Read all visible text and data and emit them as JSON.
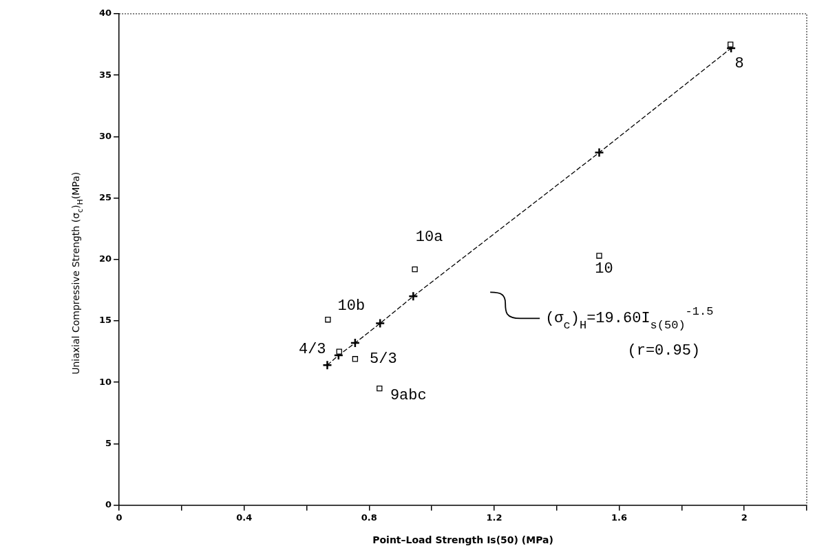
{
  "chart_data": {
    "type": "scatter",
    "xlabel": "Point–Load Strength Is(50) (MPa)",
    "ylabel": "Uniaxial Compressive Strength (σ$_{c}$)$_{H}$(MPa)",
    "xlim": [
      0,
      2.2
    ],
    "ylim": [
      0,
      40
    ],
    "xticks": [
      0,
      {
        "value": 0.2,
        "label": null
      },
      0.4,
      {
        "value": 0.6,
        "label": null
      },
      0.8,
      {
        "value": 1.0,
        "label": null
      },
      1.2,
      {
        "value": 1.4,
        "label": null
      },
      1.6,
      {
        "value": 1.8,
        "label": null
      },
      2,
      {
        "value": 2.2,
        "label": null
      }
    ],
    "yticks": [
      0,
      5,
      10,
      15,
      20,
      25,
      30,
      35,
      40
    ],
    "grid": false,
    "legend": false,
    "series": [
      {
        "marker": "square",
        "color": "#000000",
        "x": [
          0.668,
          0.704,
          0.755,
          0.833,
          0.946,
          1.536,
          1.956
        ],
        "values": [
          15.1,
          12.5,
          11.9,
          9.5,
          19.2,
          20.3,
          37.5
        ]
      },
      {
        "type": "line",
        "marker": "cross",
        "line_style": "dashed",
        "color": "#000000",
        "x": [
          0.666,
          0.702,
          0.755,
          0.835,
          0.941,
          1.536,
          1.958
        ],
        "values": [
          11.4,
          12.2,
          13.2,
          14.8,
          17.0,
          28.7,
          37.2
        ]
      }
    ],
    "annotations": [
      {
        "text": "10b",
        "x": 0.668,
        "y": 15.1
      },
      {
        "text": "4/3",
        "x": 0.704,
        "y": 12.5
      },
      {
        "text": "5/3",
        "x": 0.755,
        "y": 11.9
      },
      {
        "text": "9abc",
        "x": 0.833,
        "y": 9.5
      },
      {
        "text": "10a",
        "x": 0.946,
        "y": 19.2
      },
      {
        "text": "10",
        "x": 1.536,
        "y": 20.3
      },
      {
        "text": "8",
        "x": 1.956,
        "y": 37.5
      },
      "(σ$_{c}$)$_{H}$=19.60I$_{s(50)}$$^{-1.5}$",
      "(r=0.95)"
    ]
  }
}
